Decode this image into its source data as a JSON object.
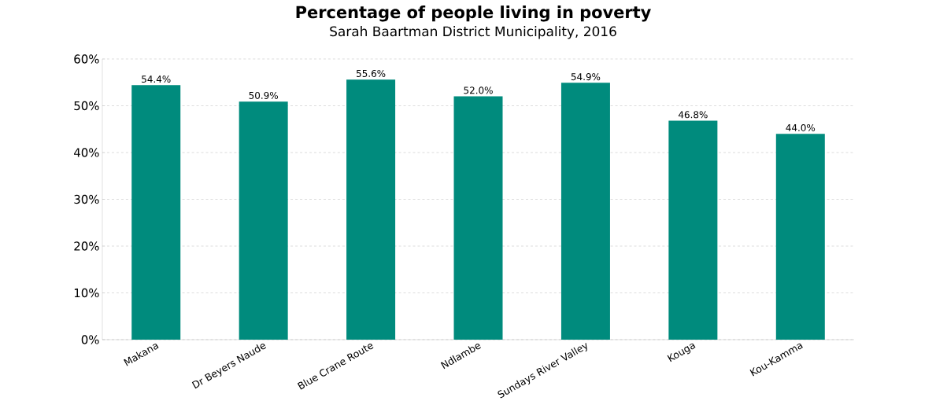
{
  "chart_data": {
    "type": "bar",
    "title": "Percentage of people living in poverty",
    "subtitle": "Sarah Baartman District Municipality, 2016",
    "categories": [
      "Makana",
      "Dr Beyers Naude",
      "Blue Crane Route",
      "Ndlambe",
      "Sundays River Valley",
      "Kouga",
      "Kou-Kamma"
    ],
    "values": [
      54.4,
      50.9,
      55.6,
      52.0,
      54.9,
      46.8,
      44.0
    ],
    "value_labels": [
      "54.4%",
      "50.9%",
      "55.6%",
      "52.0%",
      "54.9%",
      "46.8%",
      "44.0%"
    ],
    "color": "#008b7d",
    "ylim": [
      0,
      60
    ],
    "yticks": [
      {
        "value": 0,
        "label": "0%"
      },
      {
        "value": 10,
        "label": "10%"
      },
      {
        "value": 20,
        "label": "20%"
      },
      {
        "value": 30,
        "label": "30%"
      },
      {
        "value": 40,
        "label": "40%"
      },
      {
        "value": 50,
        "label": "50%"
      },
      {
        "value": 60,
        "label": "60%"
      }
    ],
    "grid": "y"
  }
}
